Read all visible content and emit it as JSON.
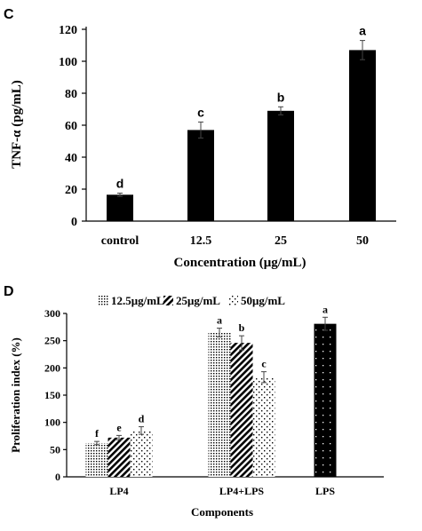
{
  "chart_data": [
    {
      "panel": "C",
      "type": "bar",
      "ylabel": "TNF-α (pg/mL)",
      "xlabel": "Concentration (μg/mL)",
      "ylim": [
        0,
        120
      ],
      "yticks": [
        0,
        20,
        40,
        60,
        80,
        100,
        120
      ],
      "categories": [
        "control",
        "12.5",
        "25",
        "50"
      ],
      "values": [
        16.5,
        57,
        69,
        107
      ],
      "errors": [
        1,
        5,
        2.5,
        6
      ],
      "letters": [
        "d",
        "c",
        "b",
        "a"
      ],
      "color": "#000000"
    },
    {
      "panel": "D",
      "type": "bar",
      "ylabel": "Proliferation index (%)",
      "xlabel": "Components",
      "ylim": [
        0,
        300
      ],
      "yticks": [
        0,
        50,
        100,
        150,
        200,
        250,
        300
      ],
      "categories": [
        "LP4",
        "LP4+LPS",
        "LPS"
      ],
      "legend": [
        "12.5μg/mL",
        "25μg/mL",
        "50μg/mL"
      ],
      "series": [
        {
          "name": "12.5μg/mL",
          "values": [
            62,
            265,
            null
          ],
          "errors": [
            3,
            8,
            null
          ],
          "letters": [
            "f",
            "a",
            null
          ]
        },
        {
          "name": "25μg/mL",
          "values": [
            72,
            246,
            null
          ],
          "errors": [
            4,
            13,
            null
          ],
          "letters": [
            "e",
            "b",
            null
          ]
        },
        {
          "name": "50μg/mL",
          "values": [
            85,
            183,
            null
          ],
          "errors": [
            7,
            10,
            null
          ],
          "letters": [
            "d",
            "c",
            null
          ]
        }
      ],
      "extra_bar": {
        "category": "LPS",
        "value": 281,
        "error": 12,
        "letter": "a"
      }
    }
  ]
}
